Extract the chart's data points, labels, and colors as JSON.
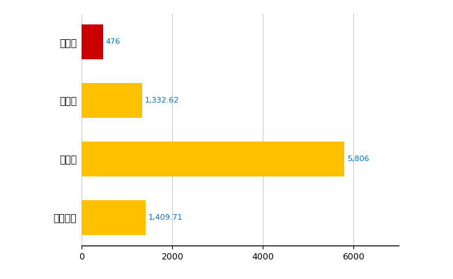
{
  "categories": [
    "全国平均",
    "県最大",
    "県平均",
    "明和町"
  ],
  "values": [
    1409.71,
    5806,
    1332.62,
    476
  ],
  "bar_colors": [
    "#FFC000",
    "#FFC000",
    "#FFC000",
    "#CC0000"
  ],
  "labels": [
    "1,409.71",
    "5,806",
    "1,332.62",
    "476"
  ],
  "xlim": [
    0,
    7000
  ],
  "xticks": [
    0,
    2000,
    4000,
    6000
  ],
  "background_color": "#FFFFFF",
  "grid_color": "#CCCCCC",
  "label_color": "#0070C0",
  "bar_height": 0.6,
  "figsize": [
    6.5,
    4.0
  ],
  "dpi": 100
}
